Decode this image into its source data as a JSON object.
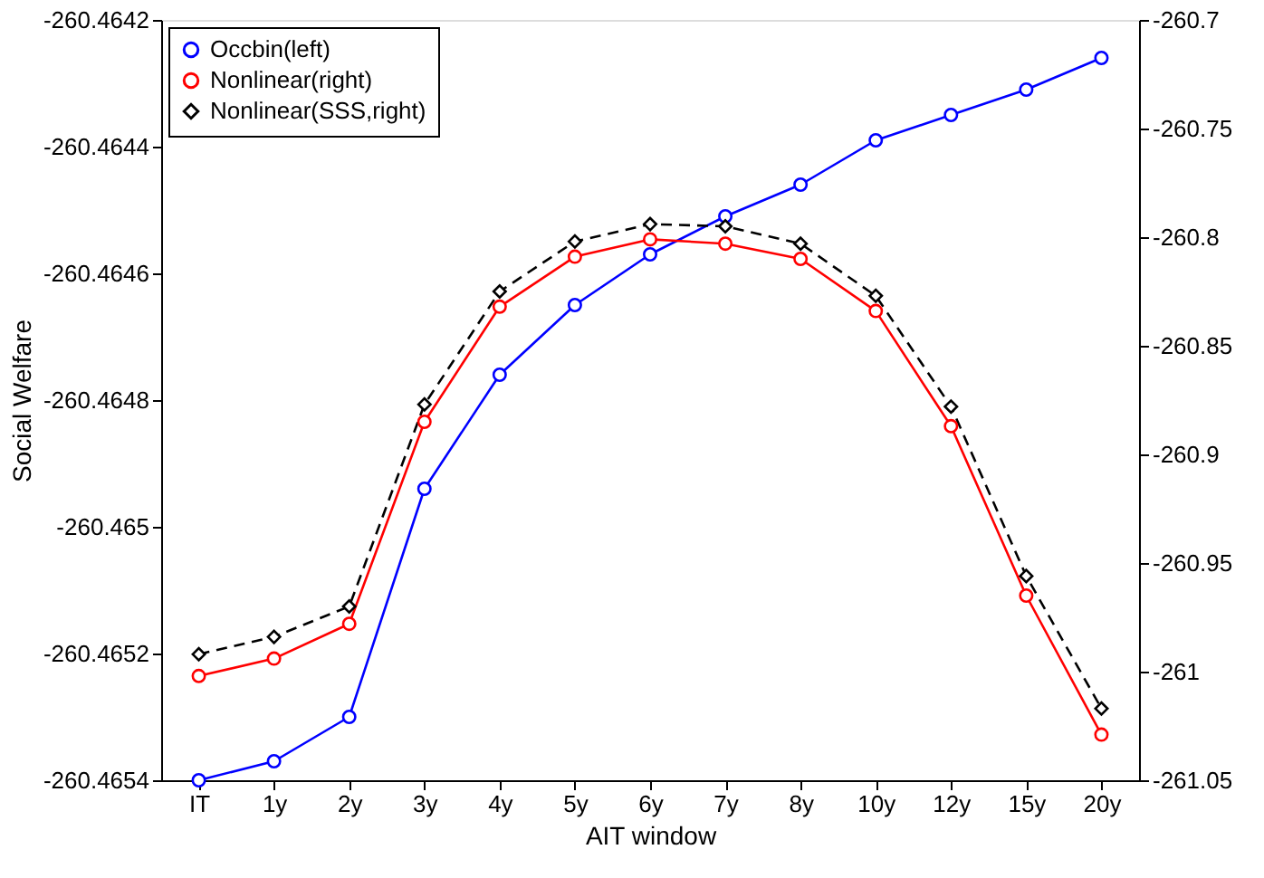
{
  "chart_data": {
    "type": "line",
    "xlabel": "AIT window",
    "ylabel": "Social Welfare",
    "categories": [
      "IT",
      "1y",
      "2y",
      "3y",
      "4y",
      "5y",
      "6y",
      "7y",
      "8y",
      "10y",
      "12y",
      "15y",
      "20y"
    ],
    "series": [
      {
        "name": "Occbin(left)",
        "color": "#0000ff",
        "marker": "circle",
        "line_style": "solid",
        "values": [
          -260.4654,
          -260.46537,
          -260.4653,
          -260.46494,
          -260.46476,
          -260.46465,
          -260.46457,
          -260.46451,
          -260.46446,
          -260.46439,
          -260.46435,
          -260.46431,
          -260.46426
        ]
      },
      {
        "name": "Nonlinear(right)",
        "color": "#ff0000",
        "marker": "circle",
        "line_style": "solid",
        "axis": "y2",
        "values": [
          -261.002,
          -260.994,
          -260.978,
          -260.885,
          -260.832,
          -260.809,
          -260.801,
          -260.803,
          -260.81,
          -260.834,
          -260.887,
          -260.965,
          -261.029
        ]
      },
      {
        "name": "Nonlinear(SSS,right)",
        "color": "#000000",
        "marker": "diamond",
        "line_style": "dashed",
        "axis": "y2",
        "values": [
          -260.992,
          -260.984,
          -260.97,
          -260.877,
          -260.825,
          -260.802,
          -260.794,
          -260.795,
          -260.803,
          -260.827,
          -260.878,
          -260.956,
          -261.017
        ]
      }
    ],
    "ylim": [
      -260.4654,
      -260.4642
    ],
    "yticks": [
      -260.4654,
      -260.4652,
      -260.465,
      -260.4648,
      -260.4646,
      -260.4644,
      -260.4642
    ],
    "y2lim": [
      -261.05,
      -260.7
    ],
    "y2ticks": [
      -261.05,
      -261,
      -260.95,
      -260.9,
      -260.85,
      -260.8,
      -260.75,
      -260.7
    ],
    "grid": false,
    "legend": "top left"
  }
}
